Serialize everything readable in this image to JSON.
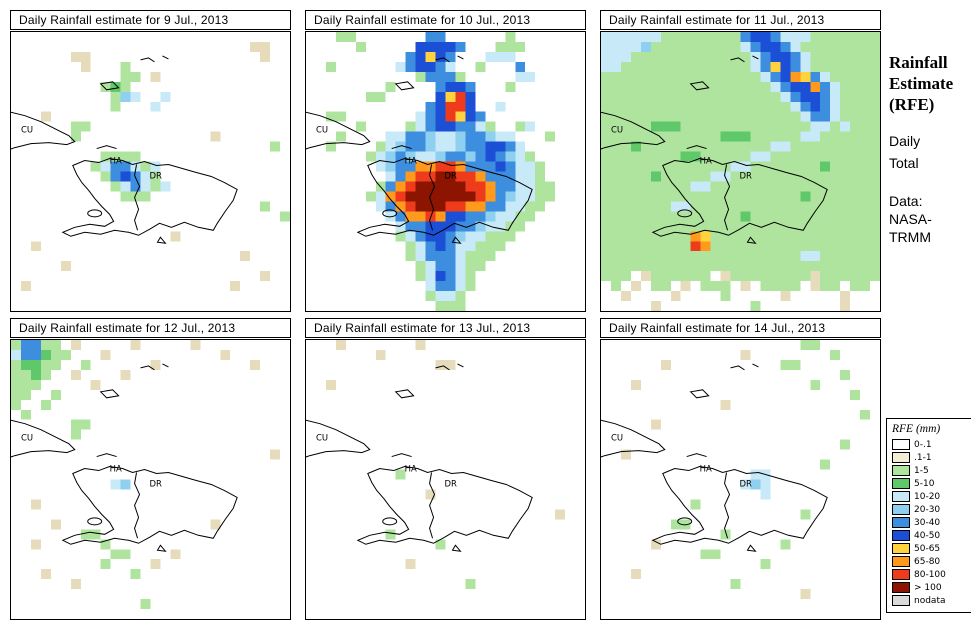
{
  "geo_labels": {
    "cu": "CU",
    "ha": "HA",
    "dr": "DR"
  },
  "palette": {
    "1": "#E6DCBB",
    "2": "#AEE49E",
    "3": "#5FC86A",
    "4": "#C8E9F8",
    "5": "#8FD0F0",
    "6": "#3E8EE0",
    "7": "#1B4FD6",
    "8": "#FFD23E",
    "9": "#FF9A1C",
    "A": "#EE3B1C",
    "B": "#8C1400",
    "C": "#DADADA"
  },
  "sidebar": {
    "title_lines": [
      "Rainfall",
      "Estimate",
      "(RFE)"
    ],
    "subtitle_lines": [
      "Daily",
      "Total"
    ],
    "source_lines": [
      "Data:",
      "NASA-",
      "TRMM"
    ]
  },
  "legend": {
    "title": "RFE (mm)",
    "items": [
      {
        "label": "0-.1",
        "color": "#FFFFFF"
      },
      {
        "label": ".1-1",
        "color": "#F4EDD3"
      },
      {
        "label": "1-5",
        "color": "#AEE49E"
      },
      {
        "label": "5-10",
        "color": "#5FC86A"
      },
      {
        "label": "10-20",
        "color": "#C8E9F8"
      },
      {
        "label": "20-30",
        "color": "#8FD0F0"
      },
      {
        "label": "30-40",
        "color": "#3E8EE0"
      },
      {
        "label": "40-50",
        "color": "#1B4FD6"
      },
      {
        "label": "50-65",
        "color": "#FFD23E"
      },
      {
        "label": "65-80",
        "color": "#FF9A1C"
      },
      {
        "label": "80-100",
        "color": "#EE3B1C"
      },
      {
        "label": "> 100",
        "color": "#8C1400"
      },
      {
        "label": "nodata",
        "color": "#DADADA"
      }
    ]
  },
  "maps": [
    {
      "title": "Daily Rainfall estimate for  9 Jul., 2013",
      "grid": [
        "............................",
        "........................11..",
        "......11.................1..",
        ".......1...2................",
        "...........22.1.............",
        ".........232................",
        "..........254..4............",
        "..........2...4.............",
        "...1........................",
        "......22....................",
        "......2.............1.......",
        "..........................2.",
        ".........2222...............",
        "........2466424.............",
        ".........267642.............",
        "..........246424............",
        "...........222..............",
        ".........................2..",
        "...........................2",
        "............................",
        "................1...........",
        "..1.........................",
        ".......................1....",
        ".....1......................",
        ".........................1..",
        ".1....................1.....",
        "............................",
        "............................"
      ]
    },
    {
      "title": "Daily Rainfall estimate for  10 Jul., 2013",
      "grid": [
        "...22.......66......2.......",
        ".....2.....77776...222......",
        "..........67876...444.......",
        "..2......467764..2...6......",
        "...........26662.....44.....",
        "........2....6776...2.......",
        "......22.....78A7...........",
        "............67AA7..4........",
        "..22.......467A876..........",
        ".....2....246776642..24.....",
        "...2....4466544566544...2...",
        "..2....245665445667764......",
        "......24565445665676542.....",
        ".......456699AA966676442....",
        "........469AABBAA9666442....",
        ".......269ABBBBBAA9664422...",
        "......249ABBBBBBBA9654422...",
        ".......469ABBBAA99664422....",
        "........4699A9776654422.....",
        ".........4667776654422......",
        ".........246776544222.......",
        "..........2467644222........",
        "..........246664222.........",
        "...........2466422..........",
        "...........247642...........",
        "............46642...........",
        "............2442............",
        ".............222............"
      ]
    },
    {
      "title": "Daily Rainfall estimate for  11 Jul., 2013",
      "grid": [
        "4444442222222267764442222222",
        "4444522222222246776422222222",
        "4442222222222224677642222222",
        "4422222222222224687642222222",
        "2222222222222222467986422222",
        "2222222222222222246779642222",
        "2222222222222222224677642222",
        "2222222222222222222467642222",
        "2222222222222222222246642222",
        "2222233322222222222224424222",
        "2222222222223332222244222222",
        "2223222222222222244222222222",
        "2222222233222224422222222222",
        "2222222222222442222222322222",
        "2222232222244222222222222222",
        "2222222224422222222222222222",
        "2222222222222222222232222222",
        "2222222442222222222222222222",
        "2222222222222232222222222222",
        "2222222222222222222222222222",
        "2222222229822222222222222222",
        "222222222A922222222222222222",
        "2222222222222222222244222222",
        "2222222222222222222222222222",
        "222.1222222.1222222221222222",
        ".2.1.22.1.222.1.2222.122.22.",
        "..1....1....2.....1.....1...",
        ".....1.........2........1..."
      ]
    },
    {
      "title": "Daily Rainfall estimate for  12 Jul., 2013",
      "grid": [
        "26622.1.....1.....1.........",
        "466322...1...........1......",
        "23322..2......1.........1...",
        "2232..1....1................",
        "222.....1...................",
        "22..2.......................",
        "2..2........................",
        ".2..........................",
        "......22....................",
        "......2.....................",
        "............................",
        "..........................1.",
        "............................",
        "............................",
        "..........45................",
        "............................",
        "..1.........................",
        "............................",
        "....1...............1.......",
        ".......22...................",
        "..1......2..................",
        "..........22....1...........",
        ".........2....1.............",
        "...1........2...............",
        "......1.....................",
        "............................",
        ".............2..............",
        "............................"
      ]
    },
    {
      "title": "Daily Rainfall estimate for  13 Jul., 2013",
      "grid": [
        "...1.......1................",
        ".......1....................",
        ".............11.............",
        "............................",
        "..1.........................",
        "............................",
        "............................",
        "............................",
        "............................",
        "............................",
        "............................",
        "............................",
        "............................",
        ".........2..................",
        "............................",
        "............1...............",
        "............................",
        ".........................1..",
        "............................",
        "........2...................",
        ".............2..............",
        "............................",
        "..........1.................",
        "............................",
        "................2...........",
        "............................",
        "............................",
        "............................"
      ]
    },
    {
      "title": "Daily Rainfall estimate for  14 Jul., 2013",
      "grid": [
        "....................22......",
        "..............1........2....",
        "......1...........22........",
        "........................2...",
        "...1.................2......",
        ".........................2..",
        "............1...............",
        "..........................2.",
        ".....1......................",
        "............................",
        "........................2...",
        "..1.........................",
        "......................2.....",
        "...............44...........",
        "..............454...........",
        "................4...........",
        ".........2..................",
        "....................2.......",
        ".......22...................",
        "............2...............",
        ".....1............2.........",
        "..........22................",
        "................2...........",
        "...1........................",
        ".............2..............",
        "....................1.......",
        "............................",
        "............................"
      ]
    }
  ]
}
